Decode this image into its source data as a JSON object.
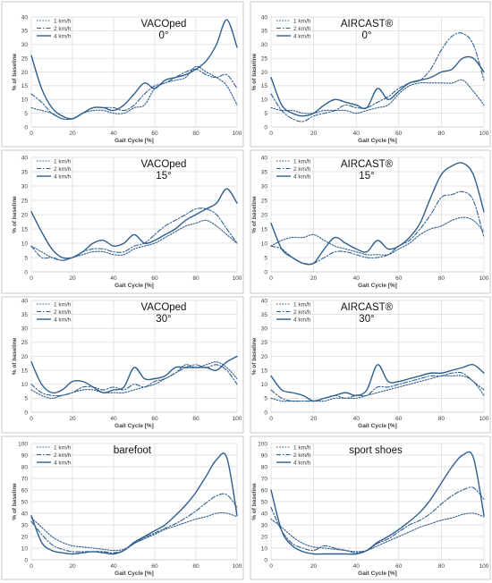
{
  "colors": {
    "line": "#2f5f8f"
  },
  "legend_series": [
    "1 km/h",
    "2 km/h",
    "4 km/h"
  ],
  "chart_data": [
    {
      "type": "line",
      "title_line1": "VACOped",
      "title_line2": "0°",
      "xlabel": "Gait Cycle [%]",
      "ylabel": "% of baseline",
      "xlim": [
        0,
        100
      ],
      "ylim": [
        0,
        40
      ],
      "xticks": [
        0,
        20,
        40,
        60,
        80,
        100
      ],
      "yticks": [
        0,
        5,
        10,
        15,
        20,
        25,
        30,
        35,
        40
      ],
      "grid": true,
      "legend": "top-left",
      "x": [
        0,
        5,
        10,
        15,
        20,
        25,
        30,
        35,
        40,
        45,
        50,
        55,
        60,
        65,
        70,
        75,
        80,
        85,
        90,
        95,
        100
      ],
      "series": [
        {
          "name": "1 km/h",
          "style": "dotted",
          "values": [
            7,
            6,
            5,
            3,
            3,
            5,
            6,
            6,
            5,
            5,
            7,
            8,
            14,
            16,
            17,
            18,
            22,
            20,
            18,
            15,
            8
          ]
        },
        {
          "name": "2 km/h",
          "style": "dashdot",
          "values": [
            12,
            9,
            5,
            3,
            3,
            5,
            7,
            7,
            7,
            6,
            8,
            12,
            15,
            16,
            18,
            20,
            21,
            19,
            18,
            19,
            14
          ]
        },
        {
          "name": "4 km/h",
          "style": "solid",
          "values": [
            26,
            14,
            7,
            4,
            3,
            5,
            7,
            7,
            6,
            8,
            12,
            16,
            14,
            17,
            18,
            19,
            21,
            24,
            30,
            39,
            29
          ]
        }
      ]
    },
    {
      "type": "line",
      "title_line1": "AIRCAST®",
      "title_line2": "0°",
      "xlabel": "Gait Cycle [%]",
      "ylabel": "% of baseline",
      "xlim": [
        0,
        100
      ],
      "ylim": [
        0,
        40
      ],
      "xticks": [
        0,
        20,
        40,
        60,
        80,
        100
      ],
      "yticks": [
        0,
        5,
        10,
        15,
        20,
        25,
        30,
        35,
        40
      ],
      "grid": true,
      "legend": "top-left",
      "x": [
        0,
        5,
        10,
        15,
        20,
        25,
        30,
        35,
        40,
        45,
        50,
        55,
        60,
        65,
        70,
        75,
        80,
        85,
        90,
        95,
        100
      ],
      "series": [
        {
          "name": "1 km/h",
          "style": "dotted",
          "values": [
            7,
            6,
            6,
            5,
            5,
            6,
            6,
            6,
            5,
            6,
            7,
            8,
            12,
            15,
            16,
            16,
            16,
            16,
            17,
            13,
            8
          ]
        },
        {
          "name": "2 km/h",
          "style": "dashdot",
          "values": [
            12,
            6,
            3,
            2,
            4,
            5,
            6,
            8,
            7,
            7,
            9,
            11,
            14,
            16,
            17,
            21,
            28,
            33,
            34,
            30,
            17
          ]
        },
        {
          "name": "4 km/h",
          "style": "solid",
          "values": [
            18,
            8,
            5,
            4,
            5,
            8,
            10,
            9,
            8,
            7,
            14,
            10,
            13,
            16,
            17,
            18,
            20,
            21,
            25,
            25,
            20
          ]
        }
      ]
    },
    {
      "type": "line",
      "title_line1": "VACOped",
      "title_line2": "15°",
      "xlabel": "Gait Cycle [%]",
      "ylabel": "% of baseline",
      "xlim": [
        0,
        100
      ],
      "ylim": [
        0,
        40
      ],
      "xticks": [
        0,
        20,
        40,
        60,
        80,
        100
      ],
      "yticks": [
        0,
        5,
        10,
        15,
        20,
        25,
        30,
        35,
        40
      ],
      "grid": true,
      "legend": "top-left",
      "x": [
        0,
        5,
        10,
        15,
        20,
        25,
        30,
        35,
        40,
        45,
        50,
        55,
        60,
        65,
        70,
        75,
        80,
        85,
        90,
        95,
        100
      ],
      "series": [
        {
          "name": "1 km/h",
          "style": "dotted",
          "values": [
            9,
            7,
            5,
            4,
            5,
            6,
            7,
            7,
            6,
            6,
            8,
            9,
            10,
            12,
            14,
            16,
            17,
            18,
            16,
            13,
            10
          ]
        },
        {
          "name": "2 km/h",
          "style": "dashdot",
          "values": [
            9,
            5,
            5,
            4,
            5,
            7,
            8,
            8,
            7,
            7,
            9,
            10,
            13,
            16,
            18,
            20,
            22,
            22,
            20,
            15,
            10
          ]
        },
        {
          "name": "4 km/h",
          "style": "solid",
          "values": [
            21,
            14,
            8,
            5,
            5,
            7,
            10,
            11,
            9,
            10,
            13,
            10,
            11,
            13,
            15,
            18,
            20,
            22,
            24,
            29,
            24
          ]
        }
      ]
    },
    {
      "type": "line",
      "title_line1": "AIRCAST®",
      "title_line2": "15°",
      "xlabel": "Gait Cycle [%]",
      "ylabel": "% of baseline",
      "xlim": [
        0,
        100
      ],
      "ylim": [
        0,
        40
      ],
      "xticks": [
        0,
        20,
        40,
        60,
        80,
        100
      ],
      "yticks": [
        0,
        5,
        10,
        15,
        20,
        25,
        30,
        35,
        40
      ],
      "grid": true,
      "legend": "top-left",
      "x": [
        0,
        5,
        10,
        15,
        20,
        25,
        30,
        35,
        40,
        45,
        50,
        55,
        60,
        65,
        70,
        75,
        80,
        85,
        90,
        95,
        100
      ],
      "series": [
        {
          "name": "1 km/h",
          "style": "dotted",
          "values": [
            9,
            11,
            12,
            12,
            13,
            11,
            9,
            8,
            7,
            6,
            6,
            6,
            8,
            10,
            13,
            15,
            16,
            18,
            19,
            18,
            14
          ]
        },
        {
          "name": "2 km/h",
          "style": "dashdot",
          "values": [
            9,
            8,
            5,
            3,
            3,
            5,
            7,
            7,
            6,
            5,
            5,
            6,
            9,
            11,
            15,
            20,
            26,
            27,
            28,
            25,
            12
          ]
        },
        {
          "name": "4 km/h",
          "style": "solid",
          "values": [
            17,
            8,
            5,
            3,
            3,
            8,
            12,
            10,
            8,
            7,
            11,
            8,
            9,
            12,
            17,
            26,
            34,
            37,
            38,
            34,
            21
          ]
        }
      ]
    },
    {
      "type": "line",
      "title_line1": "VACOped",
      "title_line2": "30°",
      "xlabel": "Gait Cycle [%]",
      "ylabel": "% of baseline",
      "xlim": [
        0,
        100
      ],
      "ylim": [
        0,
        40
      ],
      "xticks": [
        0,
        20,
        40,
        60,
        80,
        100
      ],
      "yticks": [
        0,
        5,
        10,
        15,
        20,
        25,
        30,
        35,
        40
      ],
      "grid": true,
      "legend": "top-left",
      "x": [
        0,
        5,
        10,
        15,
        20,
        25,
        30,
        35,
        40,
        45,
        50,
        55,
        60,
        65,
        70,
        75,
        80,
        85,
        90,
        95,
        100
      ],
      "series": [
        {
          "name": "1 km/h",
          "style": "dotted",
          "values": [
            8,
            6,
            5,
            6,
            7,
            8,
            8,
            7,
            7,
            7,
            8,
            9,
            10,
            12,
            14,
            17,
            16,
            17,
            18,
            16,
            12
          ]
        },
        {
          "name": "2 km/h",
          "style": "dashdot",
          "values": [
            10,
            7,
            6,
            6,
            7,
            9,
            9,
            8,
            9,
            8,
            10,
            9,
            11,
            12,
            14,
            16,
            17,
            16,
            17,
            15,
            10
          ]
        },
        {
          "name": "4 km/h",
          "style": "solid",
          "values": [
            18,
            10,
            7,
            8,
            11,
            11,
            9,
            7,
            8,
            9,
            16,
            12,
            12,
            13,
            16,
            16,
            16,
            16,
            15,
            18,
            20
          ]
        }
      ]
    },
    {
      "type": "line",
      "title_line1": "AIRCAST®",
      "title_line2": "30°",
      "xlabel": "Gait Cycle [%]",
      "ylabel": "% of baseline",
      "xlim": [
        0,
        100
      ],
      "ylim": [
        0,
        40
      ],
      "xticks": [
        0,
        20,
        40,
        60,
        80,
        100
      ],
      "yticks": [
        0,
        5,
        10,
        15,
        20,
        25,
        30,
        35,
        40
      ],
      "grid": true,
      "legend": "top-left",
      "x": [
        0,
        5,
        10,
        15,
        20,
        25,
        30,
        35,
        40,
        45,
        50,
        55,
        60,
        65,
        70,
        75,
        80,
        85,
        90,
        95,
        100
      ],
      "series": [
        {
          "name": "1 km/h",
          "style": "dotted",
          "values": [
            5,
            4,
            4,
            4,
            4,
            4,
            5,
            5,
            5,
            6,
            7,
            8,
            9,
            10,
            11,
            12,
            13,
            13,
            13,
            11,
            6
          ]
        },
        {
          "name": "2 km/h",
          "style": "dashdot",
          "values": [
            8,
            5,
            4,
            4,
            4,
            5,
            6,
            5,
            6,
            6,
            9,
            9,
            10,
            11,
            12,
            13,
            13,
            14,
            14,
            11,
            8
          ]
        },
        {
          "name": "4 km/h",
          "style": "solid",
          "values": [
            13,
            8,
            7,
            6,
            4,
            5,
            6,
            7,
            6,
            8,
            17,
            11,
            11,
            12,
            13,
            14,
            14,
            15,
            16,
            17,
            14
          ]
        }
      ]
    },
    {
      "type": "line",
      "title_line1": "barefoot",
      "title_line2": "",
      "xlabel": "Gait Cycle [%]",
      "ylabel": "% of baseline",
      "xlim": [
        0,
        100
      ],
      "ylim": [
        0,
        100
      ],
      "xticks": [
        0,
        20,
        40,
        60,
        80,
        100
      ],
      "yticks": [
        0,
        10,
        20,
        30,
        40,
        50,
        60,
        70,
        80,
        90,
        100
      ],
      "grid": true,
      "legend": "top-left",
      "x": [
        0,
        5,
        10,
        15,
        20,
        25,
        30,
        35,
        40,
        45,
        50,
        55,
        60,
        65,
        70,
        75,
        80,
        85,
        90,
        95,
        100
      ],
      "series": [
        {
          "name": "1 km/h",
          "style": "dotted",
          "values": [
            36,
            28,
            20,
            15,
            12,
            11,
            10,
            9,
            8,
            9,
            14,
            18,
            22,
            26,
            29,
            32,
            35,
            37,
            40,
            40,
            37
          ]
        },
        {
          "name": "2 km/h",
          "style": "dashdot",
          "values": [
            33,
            22,
            13,
            9,
            7,
            7,
            7,
            7,
            6,
            8,
            14,
            19,
            23,
            27,
            31,
            36,
            42,
            49,
            55,
            56,
            45
          ]
        },
        {
          "name": "4 km/h",
          "style": "solid",
          "values": [
            38,
            15,
            8,
            6,
            5,
            6,
            7,
            6,
            5,
            8,
            15,
            20,
            25,
            30,
            38,
            47,
            58,
            72,
            86,
            88,
            38
          ]
        }
      ]
    },
    {
      "type": "line",
      "title_line1": "sport shoes",
      "title_line2": "",
      "xlabel": "Gait Cycle [%]",
      "ylabel": "% of baseline",
      "xlim": [
        0,
        100
      ],
      "ylim": [
        0,
        100
      ],
      "xticks": [
        0,
        20,
        40,
        60,
        80,
        100
      ],
      "yticks": [
        0,
        10,
        20,
        30,
        40,
        50,
        60,
        70,
        80,
        90,
        100
      ],
      "grid": true,
      "legend": "top-left",
      "x": [
        0,
        5,
        10,
        15,
        20,
        25,
        30,
        35,
        40,
        45,
        50,
        55,
        60,
        65,
        70,
        75,
        80,
        85,
        90,
        95,
        100
      ],
      "series": [
        {
          "name": "1 km/h",
          "style": "dotted",
          "values": [
            35,
            28,
            20,
            14,
            11,
            10,
            9,
            8,
            7,
            8,
            12,
            16,
            20,
            24,
            28,
            31,
            34,
            36,
            39,
            40,
            37
          ]
        },
        {
          "name": "2 km/h",
          "style": "dashdot",
          "values": [
            45,
            25,
            14,
            10,
            8,
            12,
            10,
            8,
            6,
            8,
            14,
            18,
            24,
            30,
            34,
            40,
            48,
            55,
            60,
            62,
            52
          ]
        },
        {
          "name": "4 km/h",
          "style": "solid",
          "values": [
            60,
            25,
            12,
            7,
            5,
            5,
            5,
            5,
            5,
            8,
            15,
            20,
            26,
            33,
            41,
            52,
            66,
            80,
            90,
            88,
            38
          ]
        }
      ]
    }
  ]
}
